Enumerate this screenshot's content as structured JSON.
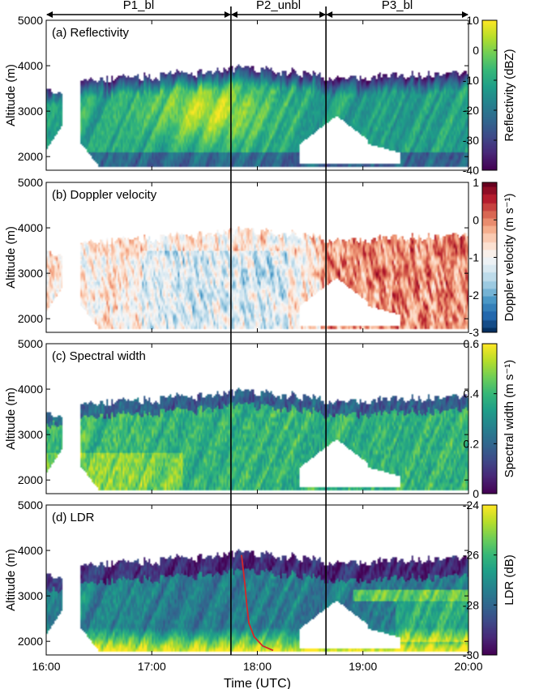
{
  "periods": [
    {
      "label": "P1_bl",
      "start": 16.0,
      "end": 17.75
    },
    {
      "label": "P2_unbl",
      "start": 17.75,
      "end": 18.65
    },
    {
      "label": "P3_bl",
      "start": 18.65,
      "end": 20.0
    }
  ],
  "x_axis": {
    "label": "Time (UTC)",
    "range": [
      16.0,
      20.0
    ],
    "ticks": [
      {
        "value": 16,
        "label": "16:00"
      },
      {
        "value": 17,
        "label": "17:00"
      },
      {
        "value": 18,
        "label": "18:00"
      },
      {
        "value": 19,
        "label": "19:00"
      },
      {
        "value": 20,
        "label": "20:00"
      }
    ]
  },
  "chart_data": [
    {
      "type": "heatmap",
      "title": "(a) Reflectivity",
      "xlabel": "",
      "ylabel": "Altitude (m)",
      "ylim": [
        1700,
        5000
      ],
      "yticks": [
        2000,
        3000,
        4000,
        5000
      ],
      "colorbar": {
        "label": "Reflectivity (dBZ)",
        "range": [
          -40,
          10
        ],
        "ticks": [
          -40,
          -30,
          -20,
          -10,
          0,
          10
        ],
        "colormap": "viridis"
      },
      "field": "reflectivity"
    },
    {
      "type": "heatmap",
      "title": "(b) Doppler velocity",
      "xlabel": "",
      "ylabel": "Altitude (m)",
      "ylim": [
        1700,
        5000
      ],
      "yticks": [
        2000,
        3000,
        4000,
        5000
      ],
      "colorbar": {
        "label": "Doppler velocity (m s⁻¹)",
        "range": [
          -3,
          1
        ],
        "ticks": [
          -3,
          -2,
          -1,
          0,
          1
        ],
        "colormap": "RdBu_r"
      },
      "field": "velocity"
    },
    {
      "type": "heatmap",
      "title": "(c) Spectral width",
      "xlabel": "",
      "ylabel": "Altitude (m)",
      "ylim": [
        1700,
        5000
      ],
      "yticks": [
        2000,
        3000,
        4000,
        5000
      ],
      "colorbar": {
        "label": "Spectral width (m s⁻¹)",
        "range": [
          0,
          0.6
        ],
        "ticks": [
          0,
          0.2,
          0.4,
          0.6
        ],
        "colormap": "viridis"
      },
      "field": "width"
    },
    {
      "type": "heatmap",
      "title": "(d) LDR",
      "xlabel": "Time (UTC)",
      "ylabel": "Altitude (m)",
      "ylim": [
        1700,
        5000
      ],
      "yticks": [
        2000,
        3000,
        4000,
        5000
      ],
      "colorbar": {
        "label": "LDR (dB)",
        "range": [
          -30,
          -24
        ],
        "ticks": [
          -30,
          -28,
          -26,
          -24
        ],
        "colormap": "viridis"
      },
      "field": "ldr",
      "red_line": [
        [
          17.85,
          3900
        ],
        [
          17.88,
          3300
        ],
        [
          17.9,
          2800
        ],
        [
          17.92,
          2400
        ],
        [
          17.97,
          2100
        ],
        [
          18.05,
          1900
        ],
        [
          18.15,
          1800
        ]
      ]
    }
  ]
}
